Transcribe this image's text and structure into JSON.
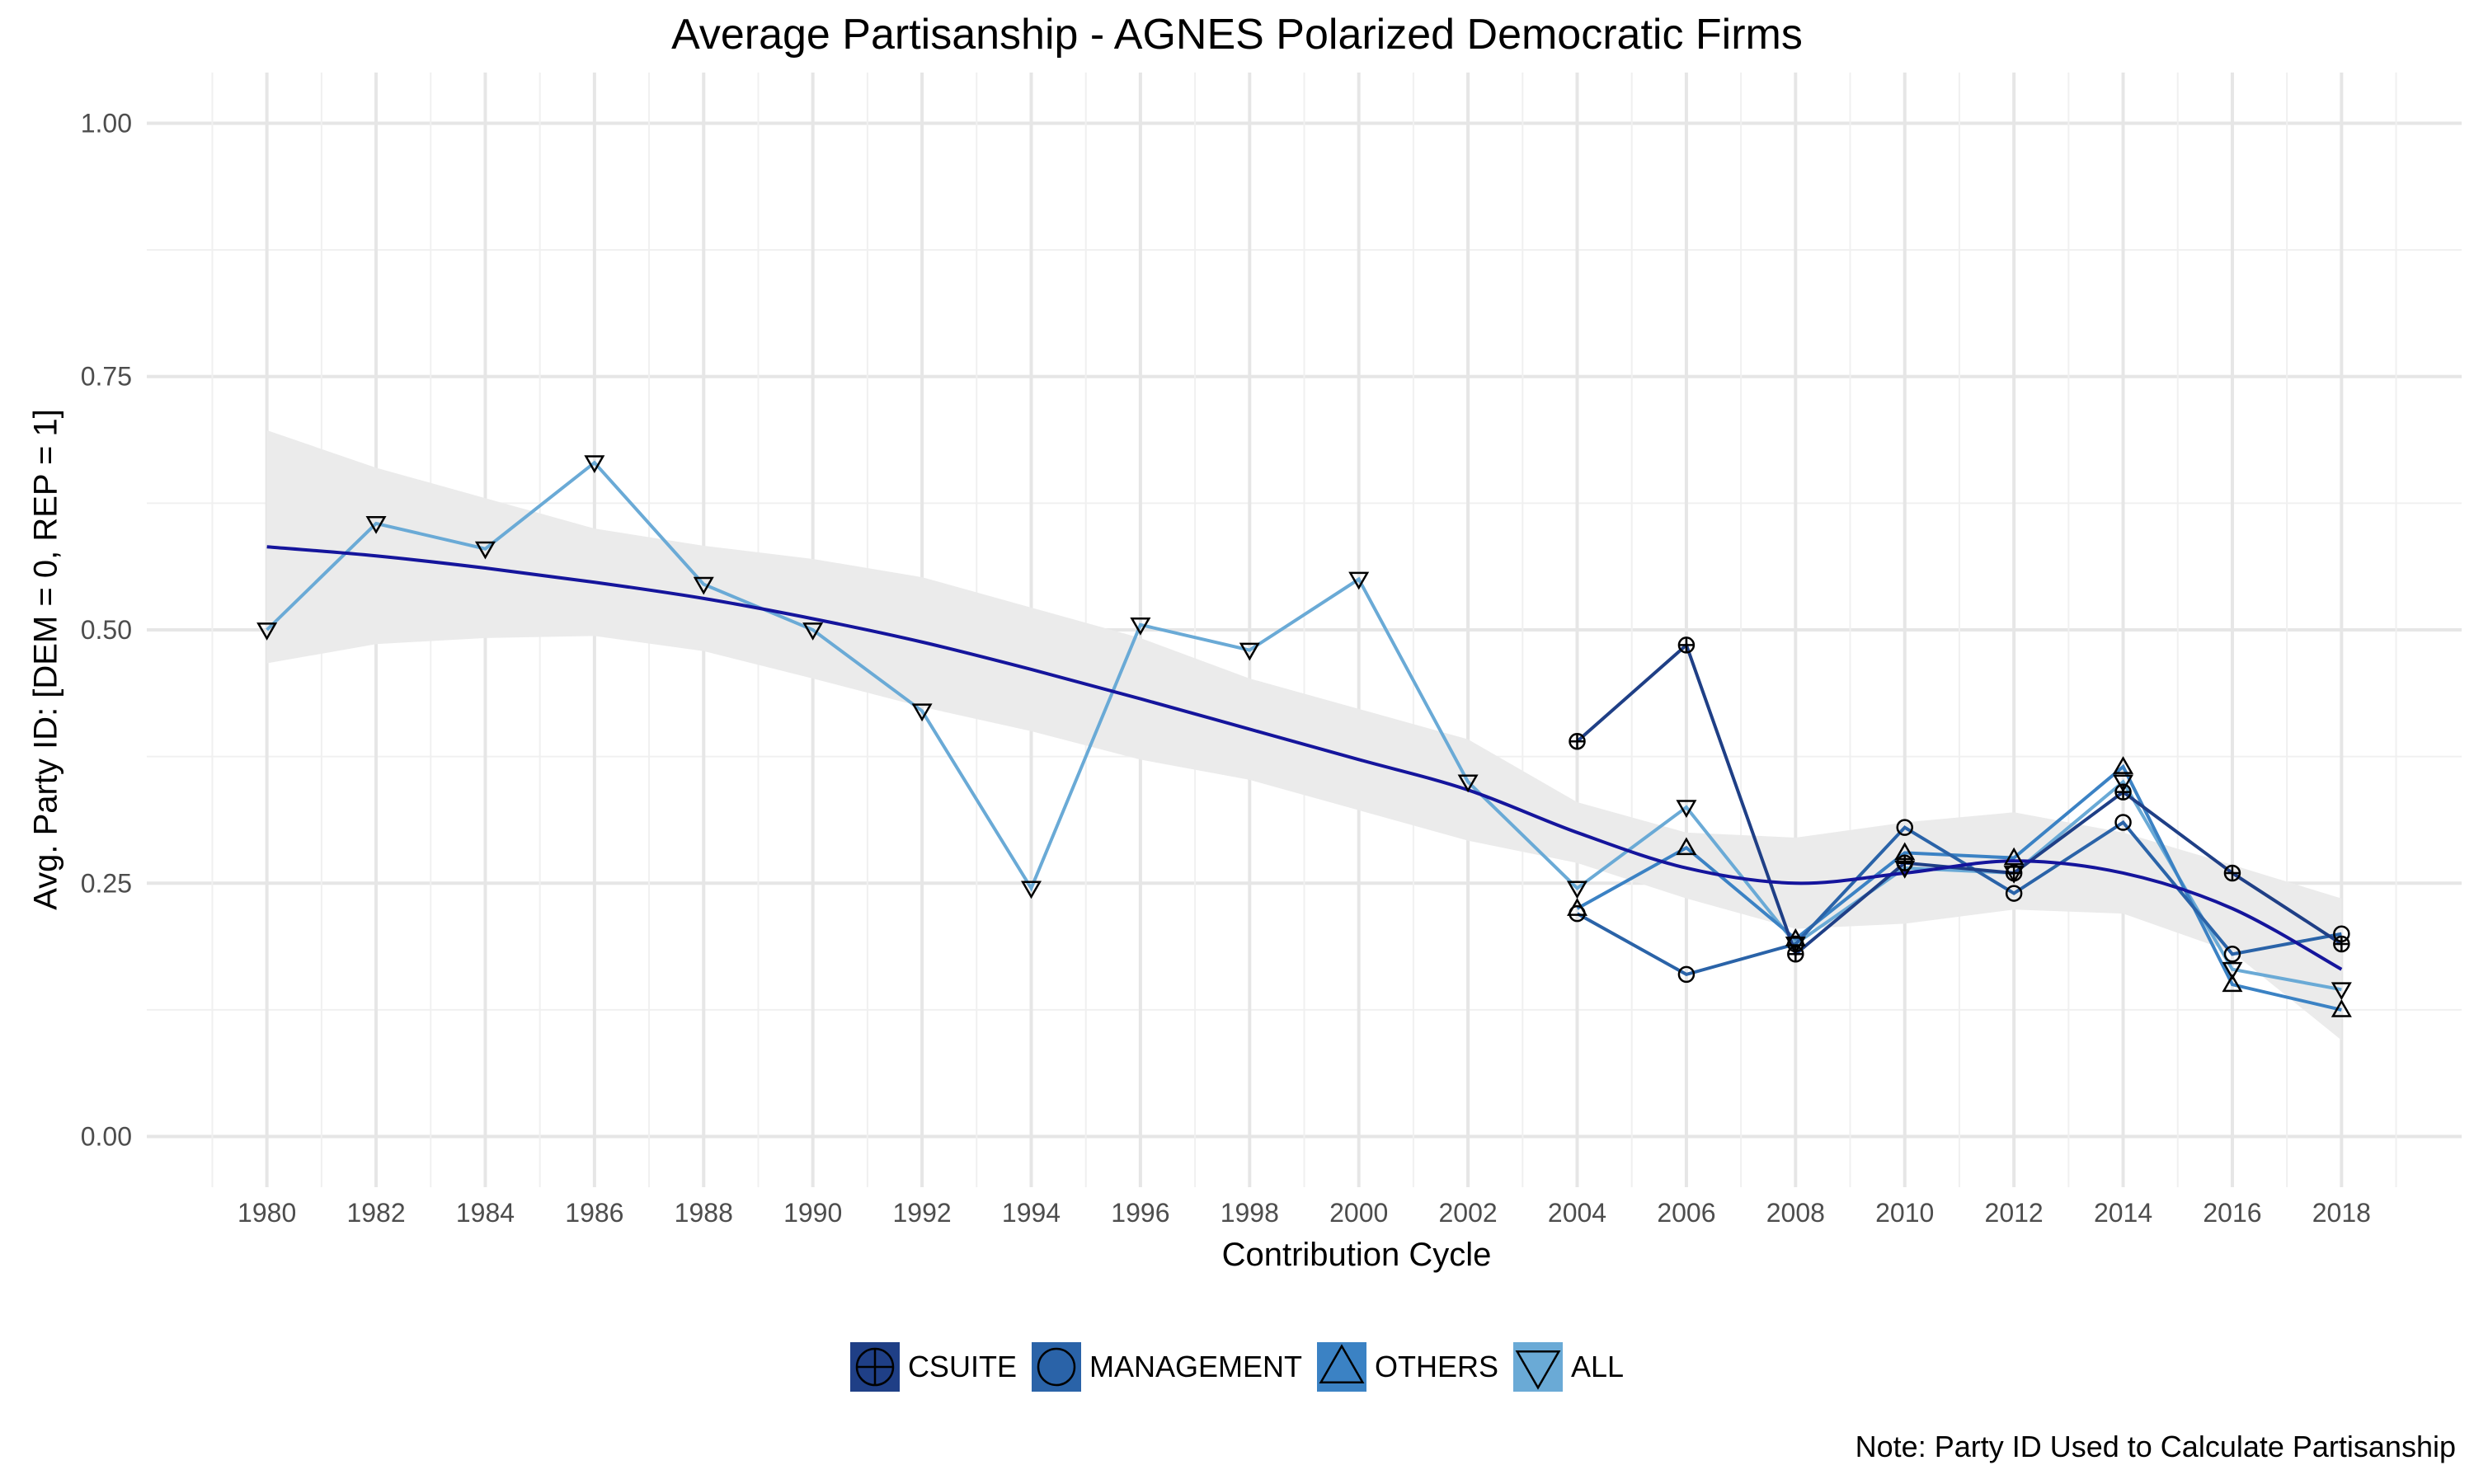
{
  "chart_data": {
    "type": "line",
    "title": "Average Partisanship - AGNES Polarized Democratic Firms",
    "xlabel": "Contribution Cycle",
    "ylabel": "Avg. Party ID: [DEM = 0, REP = 1]",
    "note": "Note: Party ID Used to Calculate Partisanship",
    "xlim": [
      1977.8,
      2020.2
    ],
    "ylim": [
      -0.05,
      1.05
    ],
    "x_ticks": [
      1980,
      1982,
      1984,
      1986,
      1988,
      1990,
      1992,
      1994,
      1996,
      1998,
      2000,
      2002,
      2004,
      2006,
      2008,
      2010,
      2012,
      2014,
      2016,
      2018
    ],
    "y_ticks": [
      0.0,
      0.25,
      0.5,
      0.75,
      1.0
    ],
    "y_tick_labels": [
      "0.00",
      "0.25",
      "0.50",
      "0.75",
      "1.00"
    ],
    "grid": true,
    "legend_position": "bottom",
    "series": [
      {
        "name": "CSUITE",
        "color": "#1f3f86",
        "marker": "circle-plus",
        "x": [
          2004,
          2006,
          2008,
          2010,
          2012,
          2014,
          2016,
          2018
        ],
        "values": [
          0.39,
          0.485,
          0.18,
          0.27,
          0.26,
          0.34,
          0.26,
          0.19
        ]
      },
      {
        "name": "MANAGEMENT",
        "color": "#2a63a8",
        "marker": "circle",
        "x": [
          2004,
          2006,
          2008,
          2010,
          2012,
          2014,
          2016,
          2018
        ],
        "values": [
          0.22,
          0.16,
          0.19,
          0.305,
          0.24,
          0.31,
          0.18,
          0.2
        ]
      },
      {
        "name": "OTHERS",
        "color": "#3b82c4",
        "marker": "triangle-up",
        "x": [
          2004,
          2006,
          2008,
          2010,
          2012,
          2014,
          2016,
          2018
        ],
        "values": [
          0.225,
          0.285,
          0.195,
          0.28,
          0.275,
          0.365,
          0.15,
          0.125
        ]
      },
      {
        "name": "ALL",
        "color": "#6aaad6",
        "marker": "triangle-down",
        "x": [
          1980,
          1982,
          1984,
          1986,
          1988,
          1990,
          1992,
          1994,
          1996,
          1998,
          2000,
          2002,
          2004,
          2006,
          2008,
          2010,
          2012,
          2014,
          2016,
          2018
        ],
        "values": [
          0.5,
          0.605,
          0.58,
          0.665,
          0.545,
          0.5,
          0.42,
          0.245,
          0.505,
          0.48,
          0.55,
          0.35,
          0.245,
          0.325,
          0.19,
          0.265,
          0.26,
          0.35,
          0.165,
          0.145
        ]
      }
    ],
    "trend": {
      "color": "#15159c",
      "band_color": "#ebebeb",
      "x": [
        1980,
        1982,
        1984,
        1986,
        1988,
        1990,
        1992,
        1994,
        1996,
        1998,
        2000,
        2002,
        2004,
        2006,
        2008,
        2010,
        2012,
        2014,
        2016,
        2018
      ],
      "values": [
        0.582,
        0.573,
        0.561,
        0.547,
        0.531,
        0.511,
        0.488,
        0.461,
        0.432,
        0.402,
        0.372,
        0.342,
        0.3,
        0.265,
        0.25,
        0.26,
        0.272,
        0.26,
        0.225,
        0.165
      ],
      "upper": [
        0.697,
        0.66,
        0.63,
        0.6,
        0.583,
        0.57,
        0.552,
        0.522,
        0.492,
        0.452,
        0.422,
        0.392,
        0.33,
        0.3,
        0.295,
        0.31,
        0.32,
        0.3,
        0.268,
        0.235
      ],
      "lower": [
        0.467,
        0.486,
        0.492,
        0.494,
        0.479,
        0.452,
        0.424,
        0.4,
        0.372,
        0.352,
        0.322,
        0.292,
        0.27,
        0.235,
        0.205,
        0.21,
        0.224,
        0.22,
        0.182,
        0.095
      ]
    }
  }
}
